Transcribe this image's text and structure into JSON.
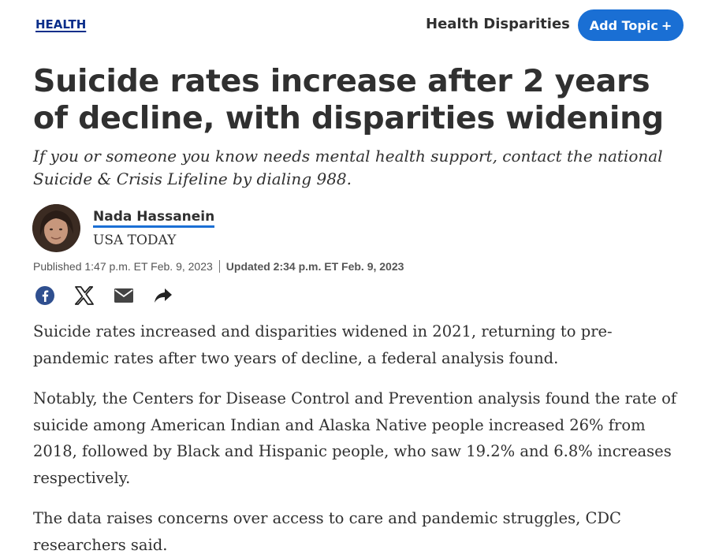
{
  "header": {
    "section": "HEALTH",
    "topic": "Health Disparities",
    "add_topic_label": "Add Topic",
    "add_topic_symbol": "+"
  },
  "article": {
    "headline": "Suicide rates increase after 2 years of decline, with disparities widening",
    "subhead": "If you or someone you know needs mental health support, contact the national Suicide & Crisis Lifeline by dialing 988.",
    "author": {
      "name": "Nada Hassanein",
      "org": "USA TODAY"
    },
    "published": "Published 1:47 p.m. ET Feb. 9, 2023",
    "updated": "Updated 2:34 p.m. ET Feb. 9, 2023",
    "paragraphs": [
      "Suicide rates increased and disparities widened in 2021, returning to pre-pandemic rates after two years of decline, a federal analysis found.",
      "Notably, the Centers for Disease Control and Prevention analysis found the rate of suicide among American Indian and Alaska Native people increased 26% from 2018, followed by Black and Hispanic people, who saw 19.2% and 6.8% increases respectively.",
      "The data raises concerns over access to care and pandemic struggles, CDC researchers said."
    ]
  },
  "share": {
    "icons": [
      "facebook-icon",
      "x-icon",
      "email-icon",
      "share-arrow-icon"
    ]
  },
  "colors": {
    "accent": "#1a6fd4",
    "section_link": "#0a2e8a",
    "text": "#303030"
  }
}
